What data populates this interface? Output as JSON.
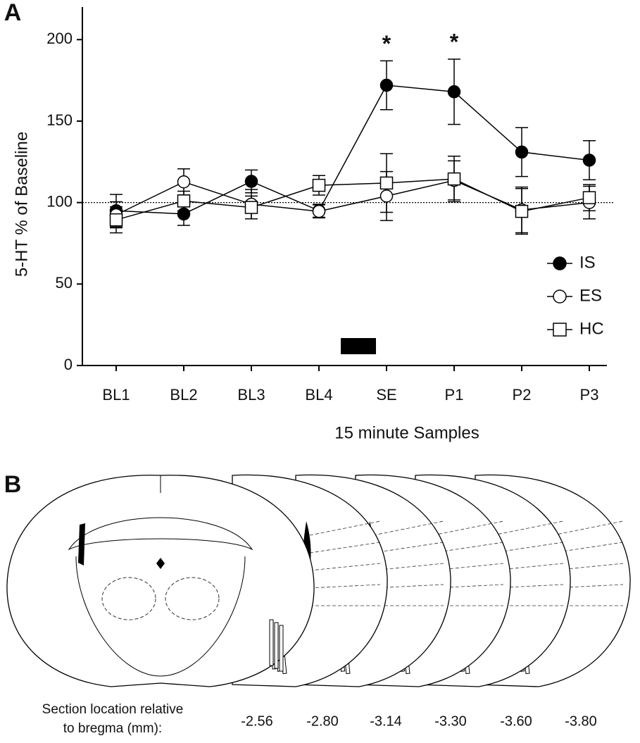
{
  "panel_labels": [
    "A",
    "B"
  ],
  "chart_data": {
    "type": "line",
    "ylabel": "5-HT % of Baseline",
    "xlabel": "15 minute Samples",
    "categories": [
      "BL1",
      "BL2",
      "BL3",
      "BL4",
      "SE",
      "P1",
      "P2",
      "P3"
    ],
    "ylim": [
      0,
      220
    ],
    "yticks": [
      0,
      50,
      100,
      150,
      200
    ],
    "reference_line": 100,
    "legend": "right",
    "series": [
      {
        "name": "IS",
        "color": "#000000",
        "fill": "#000000",
        "marker": "circle",
        "values": [
          95,
          93,
          113,
          95,
          172,
          168,
          131,
          126
        ],
        "errors": [
          10,
          7,
          7,
          4,
          15,
          20,
          15,
          12
        ]
      },
      {
        "name": "ES",
        "color": "#000000",
        "fill": "#ffffff",
        "marker": "circle",
        "values": [
          92.5,
          112.7,
          99,
          94.6,
          104,
          113.6,
          95.5,
          100
        ],
        "errors": [
          8,
          8,
          9,
          4,
          15,
          12,
          14,
          10
        ]
      },
      {
        "name": "HC",
        "color": "#000000",
        "fill": "#ffffff",
        "marker": "square",
        "values": [
          89.4,
          101,
          97,
          110.6,
          112,
          114.5,
          94.6,
          103
        ],
        "errors": [
          8,
          6,
          7,
          6,
          18,
          14,
          14,
          8
        ]
      }
    ],
    "annotations": [
      {
        "text": "*",
        "x": "SE"
      },
      {
        "text": "*",
        "x": "P1"
      }
    ]
  },
  "sections": {
    "caption": [
      "Section location relative",
      "to bregma (mm):"
    ],
    "locations": [
      "-2.56",
      "-2.80",
      "-3.14",
      "-3.30",
      "-3.60",
      "-3.80"
    ]
  }
}
